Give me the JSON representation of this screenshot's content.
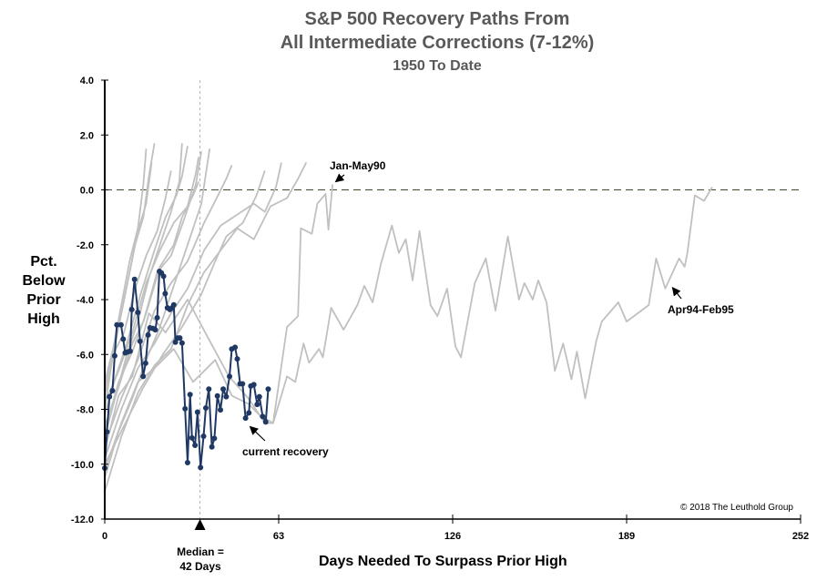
{
  "chart_data": {
    "type": "line",
    "title": [
      "S&P 500 Recovery Paths From",
      "All Intermediate Corrections (7-12%)"
    ],
    "subtitle": "1950 To Date",
    "ylabel": "Pct. Below Prior High",
    "xlabel": "Days Needed To Surpass Prior High",
    "xlim": [
      0,
      252
    ],
    "ylim": [
      -12,
      4
    ],
    "x_ticks": [
      "0",
      "63",
      "126",
      "189",
      "252"
    ],
    "y_ticks": [
      "4.0",
      "2.0",
      "0.0",
      "-2.0",
      "-4.0",
      "-6.0",
      "-8.0",
      "-10.0",
      "-12.0"
    ],
    "zero_line": 0,
    "median": {
      "label_line1": "Median =",
      "label_line2": "42 Days",
      "marker_day": 34.5
    },
    "copyright": "© 2018 The Leuthold Group",
    "colors": {
      "historical": "#c0c0c0",
      "current": "#1f3864",
      "zero_line": "#3a4a2a",
      "title": "#595959"
    },
    "annotations": [
      {
        "text": "Jan-May90",
        "day": 83,
        "value": 0.2
      },
      {
        "text": "Apr94-Feb95",
        "day": 205,
        "value": -3.3
      },
      {
        "text": "current recovery",
        "day": 52,
        "value": -8.3
      }
    ],
    "historical_series": [
      [
        [
          0,
          -9.5
        ],
        [
          5,
          -7.5
        ],
        [
          10,
          -6.8
        ],
        [
          16,
          -4.5
        ],
        [
          22,
          -5.2
        ],
        [
          30,
          -4.0
        ],
        [
          38,
          -5.5
        ],
        [
          45,
          -6.8
        ],
        [
          52,
          -7.6
        ],
        [
          58,
          -8.5
        ],
        [
          61,
          -8.5
        ],
        [
          66,
          -5.0
        ],
        [
          70,
          -4.6
        ],
        [
          71,
          -1.4
        ],
        [
          75,
          -1.6
        ],
        [
          77,
          -0.5
        ],
        [
          80,
          -0.15
        ],
        [
          81,
          -1.45
        ],
        [
          82.5,
          0.2
        ]
      ],
      [
        [
          0,
          -10.2
        ],
        [
          6,
          -8.5
        ],
        [
          12,
          -7.0
        ],
        [
          18,
          -6.5
        ],
        [
          25,
          -5.8
        ],
        [
          32,
          -7.0
        ],
        [
          40,
          -6.2
        ],
        [
          46,
          -7.5
        ],
        [
          52,
          -7.8
        ],
        [
          56,
          -8.2
        ],
        [
          61,
          -8.5
        ],
        [
          66,
          -6.8
        ],
        [
          69,
          -7.0
        ],
        [
          72,
          -5.6
        ],
        [
          74,
          -6.3
        ],
        [
          77.6,
          -5.8
        ],
        [
          79,
          -6.1
        ],
        [
          82,
          -4.3
        ],
        [
          86.5,
          -5.1
        ],
        [
          91.5,
          -4.2
        ],
        [
          94,
          -3.5
        ],
        [
          97,
          -4.1
        ],
        [
          100,
          -2.7
        ],
        [
          104,
          -1.3
        ],
        [
          106.5,
          -2.3
        ],
        [
          109,
          -1.8
        ],
        [
          111.5,
          -3.3
        ],
        [
          114,
          -1.5
        ],
        [
          118,
          -4.2
        ],
        [
          120.5,
          -4.6
        ],
        [
          124,
          -3.6
        ],
        [
          127,
          -5.7
        ],
        [
          129,
          -6.1
        ],
        [
          134,
          -3.4
        ],
        [
          138,
          -2.5
        ],
        [
          141.5,
          -4.4
        ],
        [
          146,
          -1.7
        ],
        [
          150,
          -4.0
        ],
        [
          152,
          -3.4
        ],
        [
          155,
          -4.0
        ],
        [
          157,
          -3.3
        ],
        [
          160,
          -4.1
        ],
        [
          163,
          -6.6
        ],
        [
          166,
          -5.6
        ],
        [
          169,
          -6.9
        ],
        [
          171,
          -5.9
        ],
        [
          174,
          -7.6
        ],
        [
          178,
          -5.5
        ],
        [
          180,
          -4.8
        ],
        [
          186,
          -4.1
        ],
        [
          189,
          -4.8
        ],
        [
          197,
          -4.2
        ],
        [
          199.7,
          -2.5
        ],
        [
          203,
          -3.6
        ],
        [
          208,
          -2.5
        ],
        [
          210,
          -2.8
        ],
        [
          211,
          -2.3
        ],
        [
          213.7,
          -0.2
        ],
        [
          217,
          -0.4
        ],
        [
          220,
          0.1
        ]
      ],
      [
        [
          0,
          -8.0
        ],
        [
          3,
          -6.0
        ],
        [
          6,
          -4.5
        ],
        [
          9,
          -3.0
        ],
        [
          12,
          -1.5
        ],
        [
          15,
          -0.5
        ],
        [
          17,
          1.0
        ]
      ],
      [
        [
          0,
          -7.5
        ],
        [
          4,
          -5.5
        ],
        [
          8,
          -3.5
        ],
        [
          11,
          -2.0
        ],
        [
          14,
          -1.0
        ],
        [
          16,
          0.5
        ],
        [
          18,
          1.7
        ]
      ],
      [
        [
          0,
          -9.0
        ],
        [
          4,
          -7.5
        ],
        [
          8,
          -6.0
        ],
        [
          12,
          -4.8
        ],
        [
          16,
          -3.2
        ],
        [
          20,
          -2.0
        ],
        [
          24,
          -0.8
        ],
        [
          27,
          0.3
        ],
        [
          28,
          1.7
        ]
      ],
      [
        [
          0,
          -10.5
        ],
        [
          5,
          -8.8
        ],
        [
          10,
          -7.6
        ],
        [
          15,
          -6.2
        ],
        [
          20,
          -5.0
        ],
        [
          25,
          -3.5
        ],
        [
          30,
          -2.0
        ],
        [
          35,
          -0.5
        ],
        [
          38,
          1.5
        ]
      ],
      [
        [
          0,
          -7.2
        ],
        [
          3,
          -6.0
        ],
        [
          7,
          -5.2
        ],
        [
          11,
          -3.6
        ],
        [
          15,
          -2.4
        ],
        [
          19,
          -1.5
        ],
        [
          22,
          -0.3
        ],
        [
          24,
          0.7
        ]
      ],
      [
        [
          0,
          -8.6
        ],
        [
          5,
          -7.2
        ],
        [
          10,
          -5.6
        ],
        [
          14,
          -4.8
        ],
        [
          19,
          -3.0
        ],
        [
          24,
          -2.4
        ],
        [
          29,
          -1.0
        ],
        [
          33,
          0.2
        ],
        [
          35,
          1.4
        ]
      ],
      [
        [
          0,
          -9.8
        ],
        [
          6,
          -8.0
        ],
        [
          12,
          -6.5
        ],
        [
          18,
          -5.6
        ],
        [
          24,
          -4.5
        ],
        [
          30,
          -3.6
        ],
        [
          36,
          -2.2
        ],
        [
          42,
          -1.3
        ],
        [
          48,
          -0.9
        ],
        [
          54,
          -0.5
        ],
        [
          58,
          -0.8
        ],
        [
          62,
          0.1
        ],
        [
          64,
          1.0
        ]
      ],
      [
        [
          0,
          -7.8
        ],
        [
          5,
          -6.6
        ],
        [
          10,
          -5.2
        ],
        [
          15,
          -3.4
        ],
        [
          20,
          -2.2
        ],
        [
          25,
          -1.2
        ],
        [
          30,
          -0.6
        ],
        [
          33,
          0.6
        ],
        [
          34,
          1.2
        ]
      ],
      [
        [
          0,
          -11.0
        ],
        [
          6,
          -9.0
        ],
        [
          12,
          -7.4
        ],
        [
          18,
          -6.4
        ],
        [
          24,
          -5.8
        ],
        [
          30,
          -4.2
        ],
        [
          36,
          -3.0
        ],
        [
          42,
          -2.2
        ],
        [
          48,
          -1.4
        ],
        [
          54,
          -1.8
        ],
        [
          60,
          -0.6
        ],
        [
          66,
          -0.3
        ],
        [
          70,
          0.4
        ],
        [
          73,
          1.0
        ]
      ],
      [
        [
          0,
          -8.2
        ],
        [
          4,
          -6.8
        ],
        [
          8,
          -5.6
        ],
        [
          13,
          -3.8
        ],
        [
          18,
          -2.2
        ],
        [
          22,
          -1.0
        ],
        [
          26,
          -0.2
        ],
        [
          28,
          0.5
        ],
        [
          30,
          1.6
        ]
      ],
      [
        [
          0,
          -9.3
        ],
        [
          6,
          -7.6
        ],
        [
          12,
          -6.2
        ],
        [
          18,
          -4.4
        ],
        [
          24,
          -3.4
        ],
        [
          30,
          -2.6
        ],
        [
          36,
          -1.2
        ],
        [
          40,
          -0.4
        ],
        [
          44,
          0.4
        ],
        [
          46,
          0.9
        ]
      ],
      [
        [
          0,
          -10.0
        ],
        [
          7,
          -8.6
        ],
        [
          14,
          -7.2
        ],
        [
          21,
          -6.0
        ],
        [
          28,
          -5.0
        ],
        [
          35,
          -3.8
        ],
        [
          40,
          -2.6
        ],
        [
          44,
          -1.7
        ],
        [
          50,
          -1.2
        ],
        [
          55,
          -0.2
        ],
        [
          58,
          0.7
        ]
      ],
      [
        [
          0,
          -7.0
        ],
        [
          3,
          -5.8
        ],
        [
          6,
          -4.2
        ],
        [
          9,
          -2.6
        ],
        [
          12,
          -1.4
        ],
        [
          14,
          0.2
        ],
        [
          15,
          1.5
        ]
      ],
      [
        [
          0,
          -8.8
        ],
        [
          5,
          -7.0
        ],
        [
          10,
          -5.9
        ],
        [
          15,
          -4.5
        ],
        [
          20,
          -2.8
        ],
        [
          25,
          -2.0
        ],
        [
          28,
          -1.0
        ],
        [
          32,
          -0.2
        ],
        [
          34,
          0.3
        ]
      ]
    ],
    "current_series": [
      [
        0,
        -10.14
      ],
      [
        0.8,
        -8.82
      ],
      [
        1.7,
        -7.54
      ],
      [
        2.8,
        -7.32
      ],
      [
        3.6,
        -6.05
      ],
      [
        4.4,
        -4.92
      ],
      [
        5.9,
        -4.92
      ],
      [
        6.7,
        -5.44
      ],
      [
        7.4,
        -5.94
      ],
      [
        8.3,
        -5.91
      ],
      [
        9.2,
        -5.88
      ],
      [
        9.8,
        -4.36
      ],
      [
        10.8,
        -3.26
      ],
      [
        12,
        -4.47
      ],
      [
        12.8,
        -5.52
      ],
      [
        13.9,
        -6.8
      ],
      [
        14.8,
        -6.32
      ],
      [
        15.7,
        -5.29
      ],
      [
        16.4,
        -5.03
      ],
      [
        17.4,
        -5.05
      ],
      [
        18.3,
        -5.1
      ],
      [
        19,
        -4.66
      ],
      [
        19.8,
        -2.97
      ],
      [
        20.5,
        -3.03
      ],
      [
        21.3,
        -3.15
      ],
      [
        21.9,
        -3.78
      ],
      [
        22.7,
        -4.3
      ],
      [
        23.6,
        -4.36
      ],
      [
        24.4,
        -4.3
      ],
      [
        25,
        -4.19
      ],
      [
        25.6,
        -5.55
      ],
      [
        26.4,
        -5.4
      ],
      [
        27.2,
        -5.4
      ],
      [
        28,
        -5.58
      ],
      [
        29.1,
        -7.98
      ],
      [
        30,
        -9.94
      ],
      [
        30.9,
        -7.46
      ],
      [
        31.6,
        -9.04
      ],
      [
        32.7,
        -9.31
      ],
      [
        33.6,
        -8.1
      ],
      [
        34.7,
        -10.12
      ],
      [
        35.8,
        -8.98
      ],
      [
        36.6,
        -7.95
      ],
      [
        37.7,
        -7.26
      ],
      [
        38.8,
        -9.37
      ],
      [
        39.7,
        -9.06
      ],
      [
        40.8,
        -7.51
      ],
      [
        41.9,
        -8.02
      ],
      [
        42.9,
        -7.26
      ],
      [
        44,
        -7.54
      ],
      [
        45.2,
        -6.8
      ],
      [
        46,
        -5.8
      ],
      [
        47.2,
        -5.74
      ],
      [
        48,
        -6.16
      ],
      [
        49,
        -7.07
      ],
      [
        49.9,
        -7.07
      ],
      [
        51,
        -8.32
      ],
      [
        52.2,
        -8.13
      ],
      [
        52.9,
        -7.15
      ],
      [
        54,
        -7.1
      ],
      [
        55.2,
        -7.82
      ],
      [
        56,
        -7.54
      ],
      [
        57.2,
        -8.26
      ],
      [
        58.3,
        -8.46
      ],
      [
        59.2,
        -7.26
      ]
    ]
  }
}
